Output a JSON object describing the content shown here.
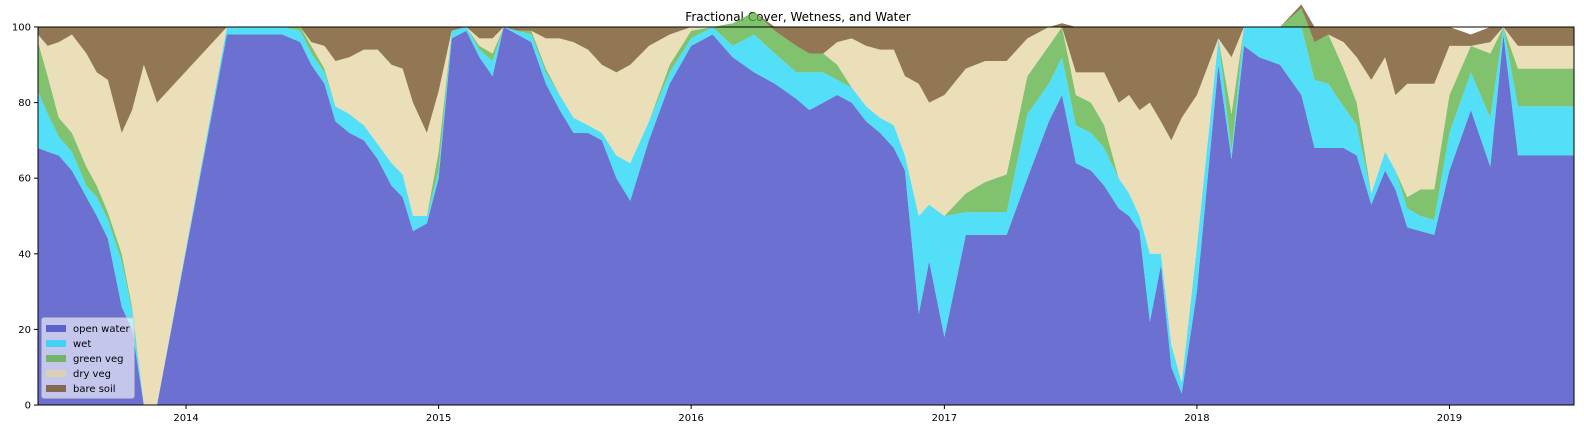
{
  "chart_data": {
    "type": "area",
    "title": "Fractional Cover, Wetness, and Water",
    "xlabel": "",
    "ylabel": "",
    "x_range": [
      "2013-06-01",
      "2019-06-30"
    ],
    "ylim": [
      0,
      100
    ],
    "x_ticks": [
      "2014",
      "2015",
      "2016",
      "2017",
      "2018",
      "2019"
    ],
    "y_ticks": [
      0,
      20,
      40,
      60,
      80,
      100
    ],
    "legend_position": "lower-left",
    "dates": [
      "2013-06-01",
      "2013-06-15",
      "2013-07-01",
      "2013-07-20",
      "2013-08-10",
      "2013-08-25",
      "2013-09-10",
      "2013-09-30",
      "2013-10-15",
      "2013-11-01",
      "2013-11-20",
      "2014-03-01",
      "2014-04-01",
      "2014-05-20",
      "2014-06-15",
      "2014-07-01",
      "2014-07-20",
      "2014-08-05",
      "2014-08-25",
      "2014-09-15",
      "2014-10-05",
      "2014-10-25",
      "2014-11-10",
      "2014-11-25",
      "2014-12-15",
      "2015-01-01",
      "2015-01-20",
      "2015-02-10",
      "2015-03-01",
      "2015-03-20",
      "2015-04-05",
      "2015-04-25",
      "2015-05-15",
      "2015-06-05",
      "2015-06-25",
      "2015-07-15",
      "2015-08-05",
      "2015-08-25",
      "2015-09-15",
      "2015-10-05",
      "2015-11-01",
      "2015-12-01",
      "2016-01-01",
      "2016-02-01",
      "2016-03-01",
      "2016-04-01",
      "2016-05-01",
      "2016-06-01",
      "2016-06-20",
      "2016-07-10",
      "2016-07-30",
      "2016-08-20",
      "2016-09-10",
      "2016-09-30",
      "2016-10-20",
      "2016-11-05",
      "2016-11-25",
      "2016-12-10",
      "2017-01-01",
      "2017-02-01",
      "2017-03-01",
      "2017-04-01",
      "2017-05-01",
      "2017-06-01",
      "2017-06-20",
      "2017-07-10",
      "2017-08-01",
      "2017-08-20",
      "2017-09-10",
      "2017-09-25",
      "2017-10-10",
      "2017-10-25",
      "2017-11-10",
      "2017-11-25",
      "2017-12-10",
      "2018-01-01",
      "2018-02-01",
      "2018-02-20",
      "2018-03-10",
      "2018-04-01",
      "2018-05-01",
      "2018-06-01",
      "2018-06-20",
      "2018-07-10",
      "2018-08-01",
      "2018-08-20",
      "2018-09-10",
      "2018-09-30",
      "2018-10-15",
      "2018-11-01",
      "2018-11-20",
      "2018-12-10",
      "2019-01-01",
      "2019-02-01",
      "2019-03-01",
      "2019-03-20",
      "2019-04-10",
      "2019-05-01",
      "2019-05-20",
      "2019-06-10",
      "2019-06-30"
    ],
    "series": [
      {
        "name": "open water",
        "color": "#3b40c0",
        "values": [
          68,
          67,
          66,
          62,
          55,
          50,
          44,
          26,
          20,
          0,
          0,
          98,
          98,
          98,
          96,
          90,
          85,
          75,
          72,
          70,
          65,
          58,
          55,
          46,
          48,
          60,
          97,
          99,
          92,
          87,
          100,
          98,
          96,
          85,
          78,
          72,
          72,
          70,
          60,
          54,
          70,
          85,
          95,
          98,
          92,
          88,
          85,
          81,
          78,
          80,
          82,
          80,
          75,
          72,
          68,
          62,
          24,
          38,
          18,
          45,
          45,
          45,
          60,
          75,
          82,
          64,
          62,
          58,
          52,
          50,
          46,
          22,
          37,
          10,
          3,
          30,
          90,
          65,
          95,
          92,
          90,
          82,
          68,
          68,
          68,
          66,
          53,
          62,
          57,
          47,
          46,
          45,
          62,
          78,
          63,
          98,
          66,
          66,
          66,
          66,
          66
        ]
      },
      {
        "name": "wet",
        "color": "#1ad4f5",
        "values": [
          15,
          10,
          5,
          5,
          3,
          5,
          5,
          12,
          5,
          0,
          0,
          2,
          2,
          2,
          3,
          3,
          3,
          4,
          5,
          4,
          4,
          6,
          6,
          4,
          2,
          2,
          2,
          1,
          2,
          4,
          0,
          1,
          2,
          3,
          4,
          4,
          2,
          2,
          6,
          10,
          5,
          3,
          2,
          2,
          3,
          10,
          8,
          7,
          10,
          8,
          4,
          4,
          4,
          4,
          6,
          4,
          26,
          15,
          32,
          6,
          6,
          6,
          17,
          10,
          10,
          10,
          10,
          10,
          8,
          6,
          4,
          18,
          3,
          6,
          3,
          12,
          7,
          2,
          5,
          8,
          10,
          18,
          18,
          17,
          11,
          8,
          3,
          5,
          5,
          5,
          4,
          4,
          10,
          10,
          13,
          2,
          13,
          13,
          13,
          13,
          13
        ]
      },
      {
        "name": "green veg",
        "color": "#56ad3e",
        "values": [
          13,
          10,
          5,
          5,
          5,
          3,
          2,
          2,
          1,
          0,
          0,
          0,
          0,
          0,
          1,
          2,
          1,
          0,
          0,
          0,
          0,
          0,
          0,
          0,
          0,
          5,
          0,
          0,
          1,
          2,
          0,
          0,
          1,
          1,
          0,
          0,
          0,
          0,
          0,
          0,
          0,
          2,
          2,
          0,
          6,
          6,
          6,
          7,
          5,
          5,
          4,
          0,
          0,
          0,
          0,
          0,
          0,
          0,
          0,
          5,
          8,
          10,
          10,
          10,
          8,
          8,
          8,
          6,
          0,
          0,
          0,
          0,
          0,
          0,
          0,
          0,
          0,
          10,
          0,
          0,
          0,
          5,
          10,
          13,
          10,
          6,
          0,
          0,
          0,
          3,
          7,
          8,
          10,
          7,
          17,
          0,
          10,
          10,
          10,
          10,
          10
        ]
      },
      {
        "name": "dry veg",
        "color": "#e3d4a1",
        "values": [
          2,
          8,
          20,
          26,
          30,
          30,
          35,
          32,
          52,
          90,
          80,
          0,
          0,
          0,
          0,
          1,
          6,
          12,
          15,
          20,
          25,
          26,
          28,
          30,
          22,
          16,
          0,
          0,
          2,
          4,
          0,
          0,
          0,
          8,
          15,
          20,
          20,
          18,
          22,
          26,
          20,
          8,
          1,
          0,
          0,
          0,
          0,
          0,
          0,
          0,
          6,
          13,
          16,
          18,
          20,
          21,
          35,
          27,
          32,
          33,
          32,
          30,
          10,
          5,
          0,
          6,
          8,
          14,
          20,
          26,
          28,
          40,
          35,
          54,
          70,
          40,
          0,
          15,
          0,
          0,
          0,
          0,
          0,
          0,
          7,
          12,
          30,
          25,
          20,
          30,
          28,
          28,
          13,
          0,
          3,
          0,
          6,
          6,
          6,
          6,
          6
        ]
      },
      {
        "name": "bare soil",
        "color": "#6c4a1b",
        "values": [
          2,
          5,
          4,
          2,
          7,
          12,
          14,
          28,
          22,
          10,
          20,
          0,
          0,
          0,
          0,
          4,
          5,
          9,
          8,
          6,
          6,
          10,
          11,
          20,
          28,
          17,
          1,
          0,
          3,
          3,
          0,
          1,
          1,
          3,
          3,
          4,
          6,
          10,
          12,
          10,
          5,
          2,
          0,
          0,
          0,
          0,
          1,
          5,
          7,
          7,
          4,
          3,
          5,
          6,
          6,
          13,
          15,
          20,
          18,
          11,
          9,
          9,
          3,
          0,
          1,
          12,
          12,
          12,
          20,
          18,
          22,
          20,
          25,
          30,
          24,
          18,
          3,
          8,
          0,
          0,
          0,
          1,
          4,
          2,
          4,
          8,
          14,
          8,
          18,
          15,
          15,
          15,
          5,
          3,
          4,
          0,
          5,
          5,
          5,
          5,
          5
        ]
      }
    ]
  }
}
